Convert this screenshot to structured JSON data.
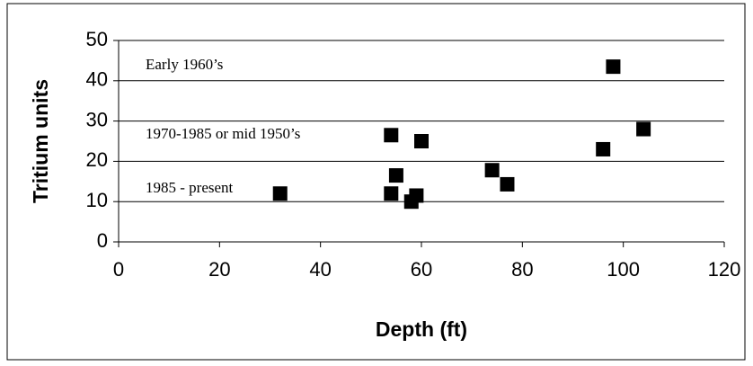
{
  "chart_data": {
    "type": "scatter",
    "x": [
      32,
      54,
      60,
      55,
      54,
      59,
      58,
      74,
      77,
      96,
      98,
      104
    ],
    "values": [
      12,
      26.5,
      25,
      16.5,
      12,
      11.5,
      10,
      17.8,
      14.3,
      23,
      43.5,
      28
    ],
    "color": "#000000",
    "xlabel": "Depth (ft)",
    "ylabel": "Tritium units",
    "xlim": [
      0,
      120
    ],
    "xticks": [
      0,
      20,
      40,
      60,
      80,
      100,
      120
    ],
    "ylim": [
      0,
      50
    ],
    "yticks": [
      0,
      10,
      20,
      30,
      40,
      50
    ],
    "grid": true,
    "annotations": [
      "Early 1960’s",
      "1970-1985 or mid 1950’s",
      "1985 - present"
    ]
  }
}
